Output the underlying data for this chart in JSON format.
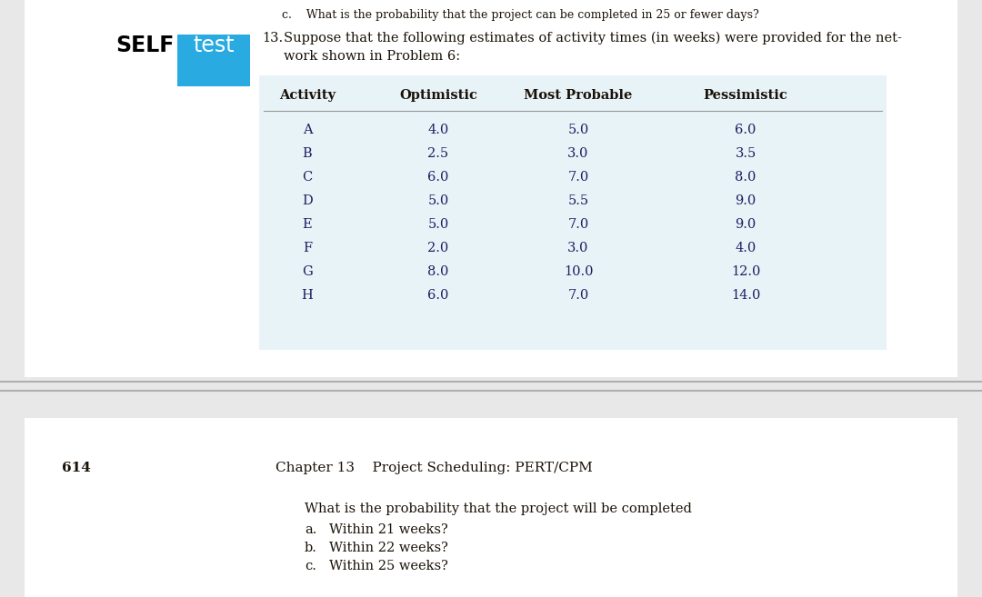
{
  "top_text": "c.    What is the probability that the project can be completed in 25 or fewer days?",
  "problem_number": "13.",
  "problem_text_line1": "Suppose that the following estimates of activity times (in weeks) were provided for the net-",
  "problem_text_line2": "work shown in Problem 6:",
  "self_label": "SELF",
  "test_label": "test",
  "test_bg": "#29abe2",
  "table_header": [
    "Activity",
    "Optimistic",
    "Most Probable",
    "Pessimistic"
  ],
  "activities": [
    "A",
    "B",
    "C",
    "D",
    "E",
    "F",
    "G",
    "H"
  ],
  "optimistic": [
    4.0,
    2.5,
    6.0,
    5.0,
    5.0,
    2.0,
    8.0,
    6.0
  ],
  "most_probable": [
    5.0,
    3.0,
    7.0,
    5.5,
    7.0,
    3.0,
    10.0,
    7.0
  ],
  "pessimistic": [
    6.0,
    3.5,
    8.0,
    9.0,
    9.0,
    4.0,
    12.0,
    14.0
  ],
  "table_bg": "#e8f3f8",
  "page_number": "614",
  "chapter_text": "Chapter 13    Project Scheduling: PERT/CPM",
  "bottom_intro": "What is the probability that the project will be completed",
  "bottom_items": [
    "Within 21 weeks?",
    "Within 22 weeks?",
    "Within 25 weeks?"
  ],
  "bottom_labels": [
    "a.",
    "b.",
    "c."
  ],
  "divider_color": "#b0b0b0",
  "page_bg_gray": "#e8e8e8",
  "page_bg_white": "#ffffff",
  "text_dark": "#1a1208",
  "text_table": "#1a2060",
  "serif_font": "DejaVu Serif",
  "sans_font": "DejaVu Sans"
}
